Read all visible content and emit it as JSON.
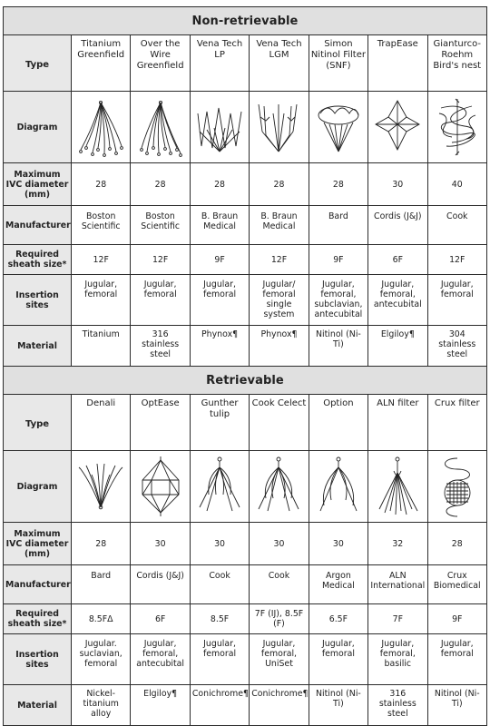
{
  "non_retrievable": {
    "title": "Non-retrievable",
    "row_labels": {
      "type": "Type",
      "diagram": "Diagram",
      "max_ivc": "Maximum IVC diameter (mm)",
      "manufacturer": "Manufacturer",
      "sheath": "Required sheath size*",
      "insertion": "Insertion sites",
      "material": "Material"
    },
    "filters": [
      {
        "type": "Titanium Greenfield",
        "icon": "titanium-greenfield-filter-icon",
        "max_ivc": "28",
        "manufacturer": "Boston Scientific",
        "sheath": "12F",
        "insertion": "Jugular, femoral",
        "material": "Titanium"
      },
      {
        "type": "Over the Wire Greenfield",
        "icon": "over-the-wire-greenfield-filter-icon",
        "max_ivc": "28",
        "manufacturer": "Boston Scientific",
        "sheath": "12F",
        "insertion": "Jugular, femoral",
        "material": "316 stainless steel"
      },
      {
        "type": "Vena Tech LP",
        "icon": "vena-tech-lp-filter-icon",
        "max_ivc": "28",
        "manufacturer": "B. Braun Medical",
        "sheath": "9F",
        "insertion": "Jugular, femoral",
        "material": "Phynox¶"
      },
      {
        "type": "Vena Tech LGM",
        "icon": "vena-tech-lgm-filter-icon",
        "max_ivc": "28",
        "manufacturer": "B. Braun Medical",
        "sheath": "12F",
        "insertion": "Jugular/ femoral single system",
        "material": "Phynox¶"
      },
      {
        "type": "Simon Nitinol Filter (SNF)",
        "icon": "simon-nitinol-filter-icon",
        "max_ivc": "28",
        "manufacturer": "Bard",
        "sheath": "9F",
        "insertion": "Jugular, femoral, subclavian, antecubital",
        "material": "Nitinol (Ni-Ti)"
      },
      {
        "type": "TrapEase",
        "icon": "trapease-filter-icon",
        "max_ivc": "30",
        "manufacturer": "Cordis (J&J)",
        "sheath": "6F",
        "insertion": "Jugular, femoral, antecubital",
        "material": "Elgiloy¶"
      },
      {
        "type": "Gianturco-Roehm Bird's nest",
        "icon": "birds-nest-filter-icon",
        "max_ivc": "40",
        "manufacturer": "Cook",
        "sheath": "12F",
        "insertion": "Jugular, femoral",
        "material": "304 stainless steel"
      }
    ]
  },
  "retrievable": {
    "title": "Retrievable",
    "row_labels": {
      "type": "Type",
      "diagram": "Diagram",
      "max_ivc": "Maximum IVC diameter (mm)",
      "manufacturer": "Manufacturer",
      "sheath": "Required sheath size*",
      "insertion": "Insertion sites",
      "material": "Material"
    },
    "filters": [
      {
        "type": "Denali",
        "icon": "denali-filter-icon",
        "max_ivc": "28",
        "manufacturer": "Bard",
        "sheath": "8.5FΔ",
        "insertion": "Jugular. suclavian, femoral",
        "material": "Nickel-titanium alloy"
      },
      {
        "type": "OptEase",
        "icon": "optease-filter-icon",
        "max_ivc": "30",
        "manufacturer": "Cordis (J&J)",
        "sheath": "6F",
        "insertion": "Jugular, femoral, antecubital",
        "material": "Elgiloy¶"
      },
      {
        "type": "Gunther tulip",
        "icon": "gunther-tulip-filter-icon",
        "max_ivc": "30",
        "manufacturer": "Cook",
        "sheath": "8.5F",
        "insertion": "Jugular, femoral",
        "material": "Conichrome¶"
      },
      {
        "type": "Cook Celect",
        "icon": "cook-celect-filter-icon",
        "max_ivc": "30",
        "manufacturer": "Cook",
        "sheath": "7F (IJ), 8.5F (F)",
        "insertion": "Jugular, femoral, UniSet",
        "material": "Conichrome¶"
      },
      {
        "type": "Option",
        "icon": "option-filter-icon",
        "max_ivc": "30",
        "manufacturer": "Argon Medical",
        "sheath": "6.5F",
        "insertion": "Jugular, femoral",
        "material": "Nitinol (Ni-Ti)"
      },
      {
        "type": "ALN filter",
        "icon": "aln-filter-icon",
        "max_ivc": "32",
        "manufacturer": "ALN International",
        "sheath": "7F",
        "insertion": "Jugular, femoral, basilic",
        "material": "316 stainless steel"
      },
      {
        "type": "Crux filter",
        "icon": "crux-filter-icon",
        "max_ivc": "28",
        "manufacturer": "Crux Biomedical",
        "sheath": "9F",
        "insertion": "Jugular, femoral",
        "material": "Nitinol (Ni-Ti)"
      }
    ]
  }
}
